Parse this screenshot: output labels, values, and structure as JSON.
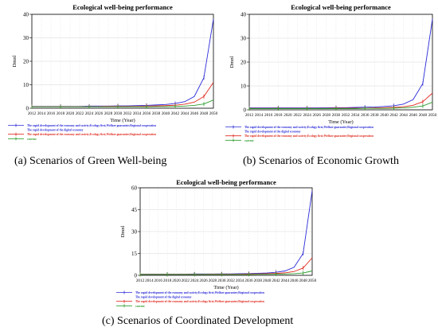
{
  "colors": {
    "series_blue": "#2b2bd8",
    "series_red": "#e02a1e",
    "series_orange": "#d98c1a",
    "series_green": "#2e9e2e",
    "grid": "#d8d8d8",
    "frame": "#000000"
  },
  "chart_data": [
    {
      "type": "line",
      "title": "Ecological well-being performance",
      "xlabel": "Time (Year)",
      "ylabel": "Dmnl",
      "ylim": [
        0,
        40
      ],
      "yticks": [
        0,
        10,
        20,
        30,
        40
      ],
      "x_tick_labels": [
        "2012",
        "2014",
        "2016",
        "2018",
        "2020",
        "2022",
        "2024",
        "2026",
        "2028",
        "2030",
        "2032",
        "2034",
        "2036",
        "2038",
        "2040",
        "2042",
        "2044",
        "2046",
        "2048",
        "2050"
      ],
      "x": [
        2012,
        2014,
        2016,
        2018,
        2020,
        2022,
        2024,
        2026,
        2028,
        2030,
        2032,
        2034,
        2036,
        2038,
        2040,
        2042,
        2044,
        2046,
        2048,
        2050
      ],
      "grid": true,
      "legend_position": "bottom-left",
      "series": [
        {
          "name": "The rapid development of the economy and society;Ecology first;Welfare guarantee;Regional cooperation",
          "color_key": "series_blue",
          "values": [
            0.8,
            0.8,
            0.8,
            0.8,
            0.8,
            0.8,
            0.9,
            0.9,
            0.9,
            1.0,
            1.0,
            1.1,
            1.2,
            1.4,
            1.6,
            2.0,
            2.8,
            5.0,
            13.0,
            38.0
          ]
        },
        {
          "name": "The rapid development of the digital economy",
          "color_key": "series_blue",
          "values": null
        },
        {
          "name": "The rapid development of the economy and society;Ecology first;Welfare guarantee;Regional cooperation",
          "color_key": "series_red",
          "values": [
            0.7,
            0.7,
            0.7,
            0.7,
            0.7,
            0.7,
            0.7,
            0.7,
            0.8,
            0.8,
            0.8,
            0.8,
            0.9,
            1.0,
            1.1,
            1.3,
            1.7,
            2.6,
            5.0,
            11.0
          ]
        },
        {
          "name": "current",
          "color_key": "series_green",
          "values": [
            0.6,
            0.6,
            0.6,
            0.6,
            0.6,
            0.6,
            0.6,
            0.6,
            0.6,
            0.6,
            0.6,
            0.6,
            0.6,
            0.7,
            0.7,
            0.8,
            0.9,
            1.2,
            1.8,
            3.5
          ]
        }
      ]
    },
    {
      "type": "line",
      "title": "Ecological well-being performance",
      "xlabel": "Time (Year)",
      "ylabel": "Dmnl",
      "ylim": [
        0,
        40
      ],
      "yticks": [
        0,
        10,
        20,
        30,
        40
      ],
      "x_tick_labels": [
        "2012",
        "2014",
        "2016",
        "2018",
        "2020",
        "2022",
        "2024",
        "2026",
        "2028",
        "2030",
        "2032",
        "2034",
        "2036",
        "2038",
        "2040",
        "2042",
        "2044",
        "2046",
        "2048",
        "2050"
      ],
      "x": [
        2012,
        2014,
        2016,
        2018,
        2020,
        2022,
        2024,
        2026,
        2028,
        2030,
        2032,
        2034,
        2036,
        2038,
        2040,
        2042,
        2044,
        2046,
        2048,
        2050
      ],
      "grid": true,
      "legend_position": "bottom-left",
      "series": [
        {
          "name": "The rapid development of the economy and society;Ecology first;Welfare guarantee;Regional cooperation",
          "color_key": "series_blue",
          "values": [
            0.8,
            0.8,
            0.8,
            0.8,
            0.8,
            0.8,
            0.8,
            0.8,
            0.9,
            0.9,
            0.9,
            1.0,
            1.1,
            1.2,
            1.4,
            1.7,
            2.4,
            4.3,
            11.0,
            38.0
          ]
        },
        {
          "name": "The rapid development of the digital economy",
          "color_key": "series_blue",
          "values": null
        },
        {
          "name": "The rapid development of the economy and society;Ecology first;Welfare guarantee;Regional cooperation",
          "color_key": "series_red",
          "values": [
            0.6,
            0.6,
            0.6,
            0.6,
            0.6,
            0.6,
            0.6,
            0.6,
            0.6,
            0.7,
            0.7,
            0.7,
            0.7,
            0.8,
            0.9,
            1.0,
            1.3,
            1.9,
            3.4,
            7.0
          ]
        },
        {
          "name": "current",
          "color_key": "series_green",
          "values": [
            0.5,
            0.5,
            0.5,
            0.5,
            0.5,
            0.5,
            0.5,
            0.5,
            0.5,
            0.5,
            0.5,
            0.5,
            0.6,
            0.6,
            0.6,
            0.7,
            0.8,
            1.1,
            1.6,
            3.2
          ]
        }
      ]
    },
    {
      "type": "line",
      "title": "Ecological well-being performance",
      "xlabel": "Time (Year)",
      "ylabel": "Dmnl",
      "ylim": [
        0,
        60
      ],
      "yticks": [
        0,
        15,
        30,
        45,
        60
      ],
      "x_tick_labels": [
        "2012",
        "2014",
        "2016",
        "2018",
        "2020",
        "2022",
        "2024",
        "2026",
        "2028",
        "2030",
        "2032",
        "2034",
        "2036",
        "2038",
        "2040",
        "2042",
        "2044",
        "2046",
        "2048",
        "2050"
      ],
      "x": [
        2012,
        2014,
        2016,
        2018,
        2020,
        2022,
        2024,
        2026,
        2028,
        2030,
        2032,
        2034,
        2036,
        2038,
        2040,
        2042,
        2044,
        2046,
        2048,
        2050
      ],
      "grid": true,
      "legend_position": "bottom-left",
      "series": [
        {
          "name": "The rapid development of the economy and society;Ecology first;Welfare guarantee;Regional cooperation",
          "color_key": "series_blue",
          "values": [
            0.8,
            0.8,
            0.8,
            0.8,
            0.8,
            0.8,
            0.9,
            0.9,
            0.9,
            1.0,
            1.0,
            1.1,
            1.2,
            1.4,
            1.6,
            2.1,
            3.0,
            5.5,
            15.0,
            58.0
          ]
        },
        {
          "name": "The rapid development of the digital economy",
          "color_key": "series_blue",
          "values": null
        },
        {
          "name": "The rapid development of the economy and society;Ecology first;Welfare guarantee;Regional cooperation",
          "color_key": "series_red",
          "values": [
            0.7,
            0.7,
            0.7,
            0.7,
            0.7,
            0.7,
            0.7,
            0.7,
            0.8,
            0.8,
            0.8,
            0.8,
            0.9,
            1.0,
            1.1,
            1.3,
            1.7,
            2.6,
            5.0,
            12.0
          ]
        },
        {
          "name": "current",
          "color_key": "series_green",
          "values": [
            0.6,
            0.6,
            0.6,
            0.6,
            0.6,
            0.6,
            0.6,
            0.6,
            0.6,
            0.6,
            0.6,
            0.6,
            0.6,
            0.7,
            0.7,
            0.8,
            0.9,
            1.1,
            1.6,
            3.0
          ]
        }
      ]
    }
  ],
  "captions": [
    {
      "label": "(a)",
      "text": " Scenarios of Green Well-being"
    },
    {
      "label": "(b)",
      "text": " Scenarios of Economic Growth"
    },
    {
      "label": "(c)",
      "text": " Scenarios of Coordinated Development"
    }
  ]
}
